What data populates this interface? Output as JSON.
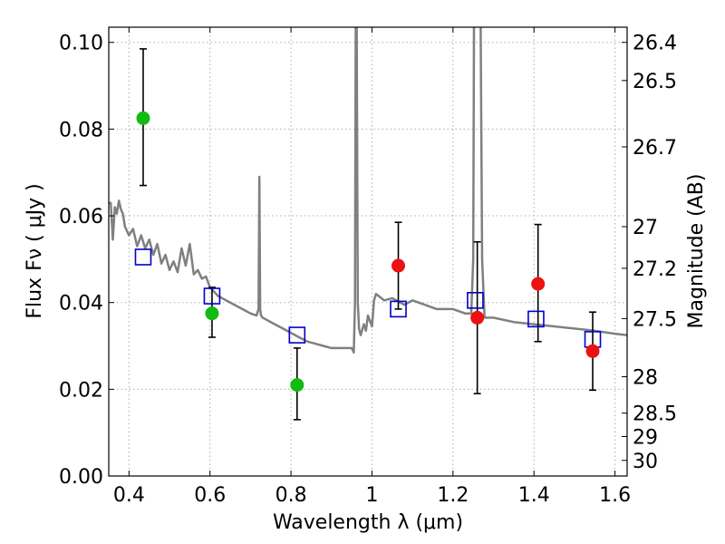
{
  "chart_data": {
    "type": "scatter",
    "title": "",
    "xlabel": "Wavelength  λ (μm)",
    "ylabel": "Flux  Fν ( μJy )",
    "y2label": "Magnitude (AB)",
    "xlim": [
      0.35,
      1.63
    ],
    "ylim": [
      0.0,
      0.1035
    ],
    "grid": true,
    "x_ticks": [
      0.4,
      0.6,
      0.8,
      1.0,
      1.2,
      1.4,
      1.6
    ],
    "x_tick_labels": [
      "0.4",
      "0.6",
      "0.8",
      "1",
      "1.2",
      "1.4",
      "1.6"
    ],
    "y_ticks": [
      0.0,
      0.02,
      0.04,
      0.06,
      0.08,
      0.1
    ],
    "y_tick_labels": [
      "0.00",
      "0.02",
      "0.04",
      "0.06",
      "0.08",
      "0.10"
    ],
    "y2_ticks": [
      {
        "label": "26.4",
        "flux": 0.1
      },
      {
        "label": "26.5",
        "flux": 0.0912
      },
      {
        "label": "26.7",
        "flux": 0.0759
      },
      {
        "label": "27",
        "flux": 0.0575
      },
      {
        "label": "27.2",
        "flux": 0.0479
      },
      {
        "label": "27.5",
        "flux": 0.0363
      },
      {
        "label": "28",
        "flux": 0.0229
      },
      {
        "label": "28.5",
        "flux": 0.0145
      },
      {
        "label": "29",
        "flux": 0.0091
      },
      {
        "label": "30",
        "flux": 0.0036
      }
    ],
    "colors": {
      "model": "#808080",
      "green": "#11bb11",
      "red": "#ee1111",
      "square": "#0000cc",
      "error": "#000000",
      "grid": "#b0b0b0"
    },
    "model_spectrum": {
      "x": [
        0.35,
        0.355,
        0.36,
        0.365,
        0.37,
        0.375,
        0.38,
        0.385,
        0.39,
        0.4,
        0.41,
        0.42,
        0.43,
        0.44,
        0.45,
        0.46,
        0.47,
        0.48,
        0.49,
        0.5,
        0.51,
        0.52,
        0.53,
        0.54,
        0.55,
        0.56,
        0.57,
        0.58,
        0.59,
        0.6,
        0.61,
        0.62,
        0.64,
        0.66,
        0.68,
        0.7,
        0.715,
        0.72,
        0.722,
        0.724,
        0.726,
        0.73,
        0.74,
        0.76,
        0.78,
        0.8,
        0.82,
        0.84,
        0.86,
        0.88,
        0.9,
        0.92,
        0.94,
        0.95,
        0.955,
        0.958,
        0.96,
        0.962,
        0.965,
        0.968,
        0.972,
        0.98,
        0.985,
        0.99,
        1.0,
        1.005,
        1.01,
        1.03,
        1.05,
        1.08,
        1.1,
        1.13,
        1.16,
        1.2,
        1.23,
        1.245,
        1.25,
        1.252,
        1.258,
        1.262,
        1.268,
        1.272,
        1.278,
        1.28,
        1.3,
        1.35,
        1.4,
        1.45,
        1.5,
        1.55,
        1.6,
        1.63
      ],
      "y": [
        0.063,
        0.063,
        0.0545,
        0.062,
        0.0605,
        0.0635,
        0.0615,
        0.0605,
        0.0575,
        0.0555,
        0.057,
        0.053,
        0.0555,
        0.0525,
        0.0545,
        0.051,
        0.0535,
        0.049,
        0.051,
        0.0475,
        0.0495,
        0.047,
        0.0525,
        0.0485,
        0.0535,
        0.0465,
        0.0475,
        0.0455,
        0.046,
        0.0435,
        0.0425,
        0.0415,
        0.0405,
        0.0395,
        0.0385,
        0.0375,
        0.037,
        0.0385,
        0.069,
        0.0385,
        0.037,
        0.0365,
        0.036,
        0.035,
        0.034,
        0.033,
        0.032,
        0.031,
        0.0305,
        0.03,
        0.0295,
        0.0295,
        0.0295,
        0.0295,
        0.0285,
        0.04,
        0.11,
        0.11,
        0.04,
        0.034,
        0.0325,
        0.035,
        0.0335,
        0.037,
        0.0345,
        0.0405,
        0.042,
        0.0405,
        0.041,
        0.0395,
        0.0405,
        0.0395,
        0.0385,
        0.0385,
        0.0375,
        0.0375,
        0.05,
        0.11,
        0.11,
        0.11,
        0.11,
        0.05,
        0.0365,
        0.0365,
        0.0365,
        0.0355,
        0.035,
        0.0345,
        0.034,
        0.0335,
        0.0328,
        0.0325
      ]
    },
    "model_points": {
      "x": [
        0.435,
        0.605,
        0.815,
        1.065,
        1.255,
        1.405,
        1.545
      ],
      "y": [
        0.0505,
        0.0415,
        0.0325,
        0.0385,
        0.0405,
        0.0362,
        0.0315
      ]
    },
    "green_points": [
      {
        "x": 0.435,
        "y": 0.0825,
        "lo": 0.067,
        "hi": 0.0985
      },
      {
        "x": 0.605,
        "y": 0.0375,
        "lo": 0.032,
        "hi": 0.0435
      },
      {
        "x": 0.815,
        "y": 0.021,
        "lo": 0.013,
        "hi": 0.0295
      }
    ],
    "red_points": [
      {
        "x": 1.065,
        "y": 0.0485,
        "lo": 0.0385,
        "hi": 0.0585
      },
      {
        "x": 1.26,
        "y": 0.0365,
        "lo": 0.019,
        "hi": 0.054
      },
      {
        "x": 1.41,
        "y": 0.0443,
        "lo": 0.031,
        "hi": 0.058
      },
      {
        "x": 1.545,
        "y": 0.0288,
        "lo": 0.0198,
        "hi": 0.0378
      }
    ]
  }
}
